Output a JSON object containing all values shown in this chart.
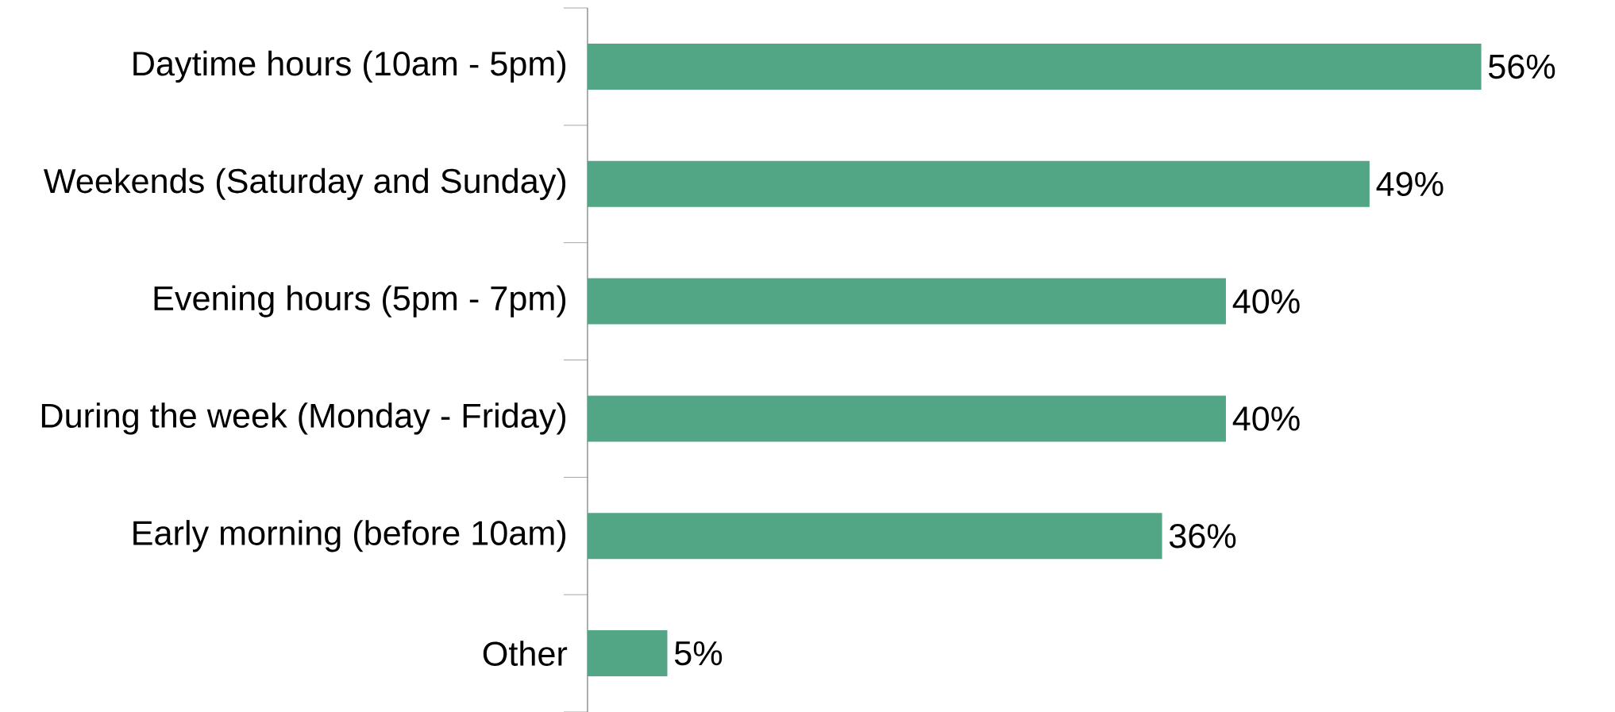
{
  "chart_data": {
    "type": "bar",
    "orientation": "horizontal",
    "categories": [
      "Daytime hours (10am - 5pm)",
      "Weekends (Saturday and Sunday)",
      "Evening hours (5pm - 7pm)",
      "During the week (Monday - Friday)",
      "Early morning (before 10am)",
      "Other"
    ],
    "values": [
      56,
      49,
      40,
      40,
      36,
      5
    ],
    "value_labels": [
      "56%",
      "49%",
      "40%",
      "40%",
      "36%",
      "5%"
    ],
    "color": "#52a585"
  }
}
